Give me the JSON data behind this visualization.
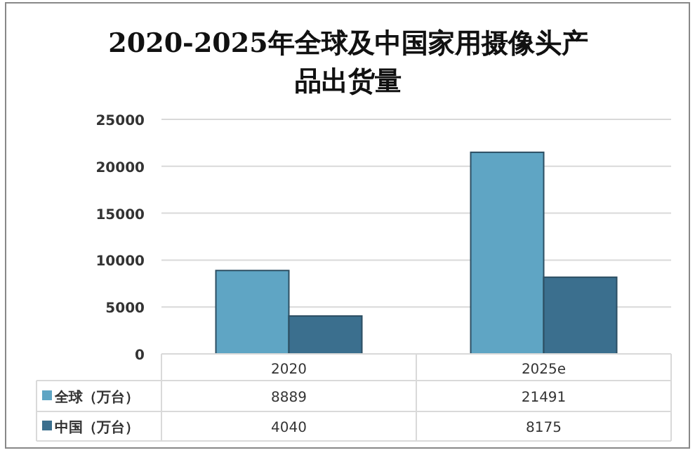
{
  "chart_data": {
    "type": "bar",
    "title": "2020-2025年全球及中国家用摄像头产品出货量",
    "categories": [
      "2020",
      "2025e"
    ],
    "series": [
      {
        "name": "全球（万台）",
        "color": "#5fa5c4",
        "values": [
          8889,
          21491
        ]
      },
      {
        "name": "中国（万台）",
        "color": "#3b6f8e",
        "values": [
          4040,
          8175
        ]
      }
    ],
    "ylim": [
      0,
      25000
    ],
    "yticks": [
      0,
      5000,
      10000,
      15000,
      20000,
      25000
    ],
    "grid": "y",
    "legend": "bottom left",
    "data_labels": true
  }
}
